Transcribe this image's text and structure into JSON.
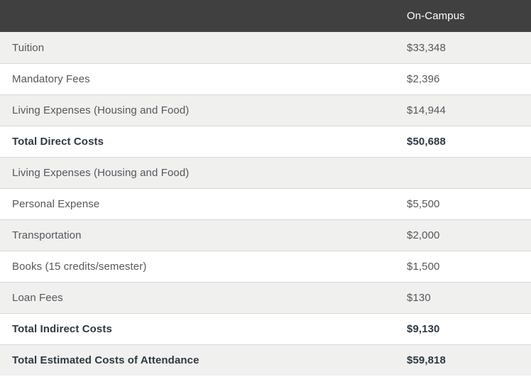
{
  "theme": {
    "header_bg": "#404041",
    "header_text": "#ffffff",
    "row_alt_bg": "#f0f0ef",
    "row_bg": "#ffffff",
    "row_border": "#d8d8d8",
    "row_text": "#55575b",
    "total_text": "#2e3842"
  },
  "table": {
    "header": {
      "label_column": "",
      "value_column": "On-Campus"
    },
    "rows": [
      {
        "label": "Tuition",
        "value": "$33,348"
      },
      {
        "label": "Mandatory Fees",
        "value": "$2,396"
      },
      {
        "label": "Living Expenses (Housing and Food)",
        "value": "$14,944"
      },
      {
        "label": "Total Direct Costs",
        "value": "$50,688",
        "bold": true
      },
      {
        "label": "Living Expenses (Housing and Food)",
        "value": ""
      },
      {
        "label": "Personal Expense",
        "value": "$5,500"
      },
      {
        "label": "Transportation",
        "value": "$2,000"
      },
      {
        "label": "Books (15 credits/semester)",
        "value": "$1,500"
      },
      {
        "label": "Loan Fees",
        "value": "$130"
      },
      {
        "label": "Total Indirect Costs",
        "value": "$9,130",
        "bold": true
      },
      {
        "label": "Total Estimated Costs of Attendance",
        "value": "$59,818",
        "bold": true
      }
    ]
  }
}
